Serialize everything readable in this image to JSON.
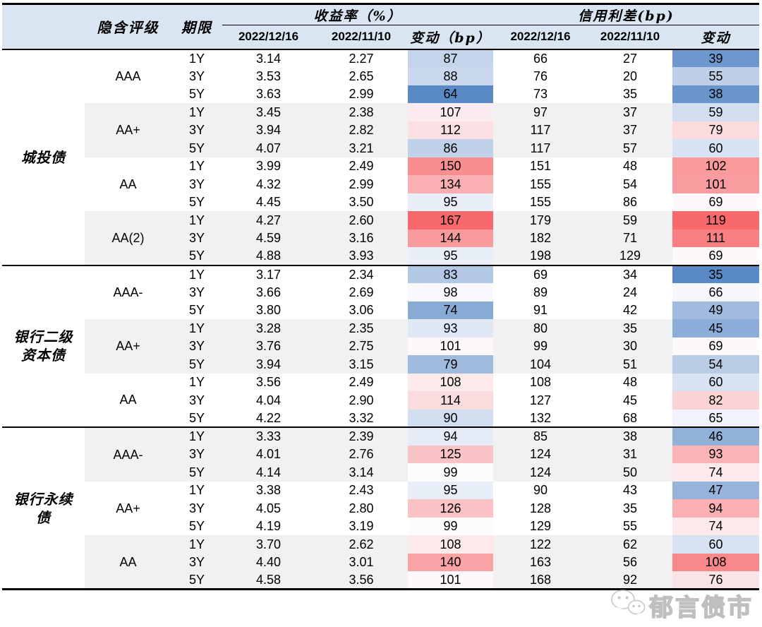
{
  "colors": {
    "header_bg": "#D9E5F1",
    "band_bg": "#F1F1F1",
    "heatmap_min": "#5A8AC6",
    "heatmap_mid": "#FCFCFF",
    "heatmap_max": "#F8696B"
  },
  "watermark": {
    "text": "郁言债市",
    "icon": "wechat-logo"
  },
  "chart_data": {
    "type": "table",
    "title": "",
    "row_header_labels": [
      "隐含评级",
      "期限"
    ],
    "column_groups": [
      {
        "label": "收益率（%）",
        "columns": [
          "2022/12/16",
          "2022/11/10",
          "变动（bp）"
        ]
      },
      {
        "label": "信用利差(bp)",
        "columns": [
          "2022/12/16",
          "2022/11/10",
          "变动"
        ]
      }
    ],
    "heatmap_columns": [
      "变动（bp）",
      "变动"
    ],
    "legend_note": "row arrays = [tenor, yield_2022_12_16, yield_2022_11_10, yield_change_bp, spread_2022_12_16, spread_2022_11_10, spread_change_bp]",
    "sections": [
      {
        "name": "城投债",
        "groups": [
          {
            "rating": "AAA",
            "rows": [
              [
                "1Y",
                "3.14",
                "2.27",
                87,
                66,
                27,
                39
              ],
              [
                "3Y",
                "3.53",
                "2.65",
                88,
                76,
                20,
                55
              ],
              [
                "5Y",
                "3.63",
                "2.99",
                64,
                73,
                35,
                38
              ]
            ]
          },
          {
            "rating": "AA+",
            "rows": [
              [
                "1Y",
                "3.45",
                "2.38",
                107,
                97,
                37,
                59
              ],
              [
                "3Y",
                "3.94",
                "2.82",
                112,
                117,
                37,
                79
              ],
              [
                "5Y",
                "4.07",
                "3.21",
                86,
                117,
                57,
                60
              ]
            ]
          },
          {
            "rating": "AA",
            "rows": [
              [
                "1Y",
                "3.99",
                "2.49",
                150,
                151,
                48,
                102
              ],
              [
                "3Y",
                "4.32",
                "2.99",
                134,
                155,
                54,
                101
              ],
              [
                "5Y",
                "4.45",
                "3.50",
                95,
                155,
                86,
                69
              ]
            ]
          },
          {
            "rating": "AA(2)",
            "rows": [
              [
                "1Y",
                "4.27",
                "2.60",
                167,
                179,
                59,
                119
              ],
              [
                "3Y",
                "4.59",
                "3.16",
                144,
                182,
                71,
                111
              ],
              [
                "5Y",
                "4.88",
                "3.93",
                95,
                198,
                129,
                69
              ]
            ]
          }
        ]
      },
      {
        "name": "银行二级资本债",
        "groups": [
          {
            "rating": "AAA-",
            "rows": [
              [
                "1Y",
                "3.17",
                "2.34",
                83,
                69,
                34,
                35
              ],
              [
                "3Y",
                "3.66",
                "2.69",
                98,
                89,
                24,
                66
              ],
              [
                "5Y",
                "3.80",
                "3.06",
                74,
                91,
                42,
                49
              ]
            ]
          },
          {
            "rating": "AA+",
            "rows": [
              [
                "1Y",
                "3.28",
                "2.35",
                93,
                80,
                35,
                45
              ],
              [
                "3Y",
                "3.76",
                "2.75",
                101,
                99,
                30,
                69
              ],
              [
                "5Y",
                "3.94",
                "3.15",
                79,
                104,
                51,
                54
              ]
            ]
          },
          {
            "rating": "AA",
            "rows": [
              [
                "1Y",
                "3.56",
                "2.49",
                108,
                108,
                48,
                60
              ],
              [
                "3Y",
                "4.04",
                "2.90",
                114,
                127,
                45,
                82
              ],
              [
                "5Y",
                "4.22",
                "3.32",
                90,
                132,
                68,
                65
              ]
            ]
          }
        ]
      },
      {
        "name": "银行永续债",
        "groups": [
          {
            "rating": "AAA-",
            "rows": [
              [
                "1Y",
                "3.33",
                "2.39",
                94,
                85,
                38,
                46
              ],
              [
                "3Y",
                "4.01",
                "2.76",
                125,
                124,
                31,
                93
              ],
              [
                "5Y",
                "4.14",
                "3.14",
                99,
                124,
                50,
                74
              ]
            ]
          },
          {
            "rating": "AA+",
            "rows": [
              [
                "1Y",
                "3.38",
                "2.43",
                95,
                90,
                43,
                47
              ],
              [
                "3Y",
                "4.05",
                "2.80",
                126,
                128,
                35,
                94
              ],
              [
                "5Y",
                "4.19",
                "3.19",
                99,
                129,
                55,
                74
              ]
            ]
          },
          {
            "rating": "AA",
            "rows": [
              [
                "1Y",
                "3.70",
                "2.62",
                108,
                122,
                62,
                60
              ],
              [
                "3Y",
                "4.40",
                "3.01",
                140,
                163,
                56,
                108
              ],
              [
                "5Y",
                "4.58",
                "3.56",
                101,
                168,
                92,
                76
              ]
            ]
          }
        ]
      }
    ]
  }
}
